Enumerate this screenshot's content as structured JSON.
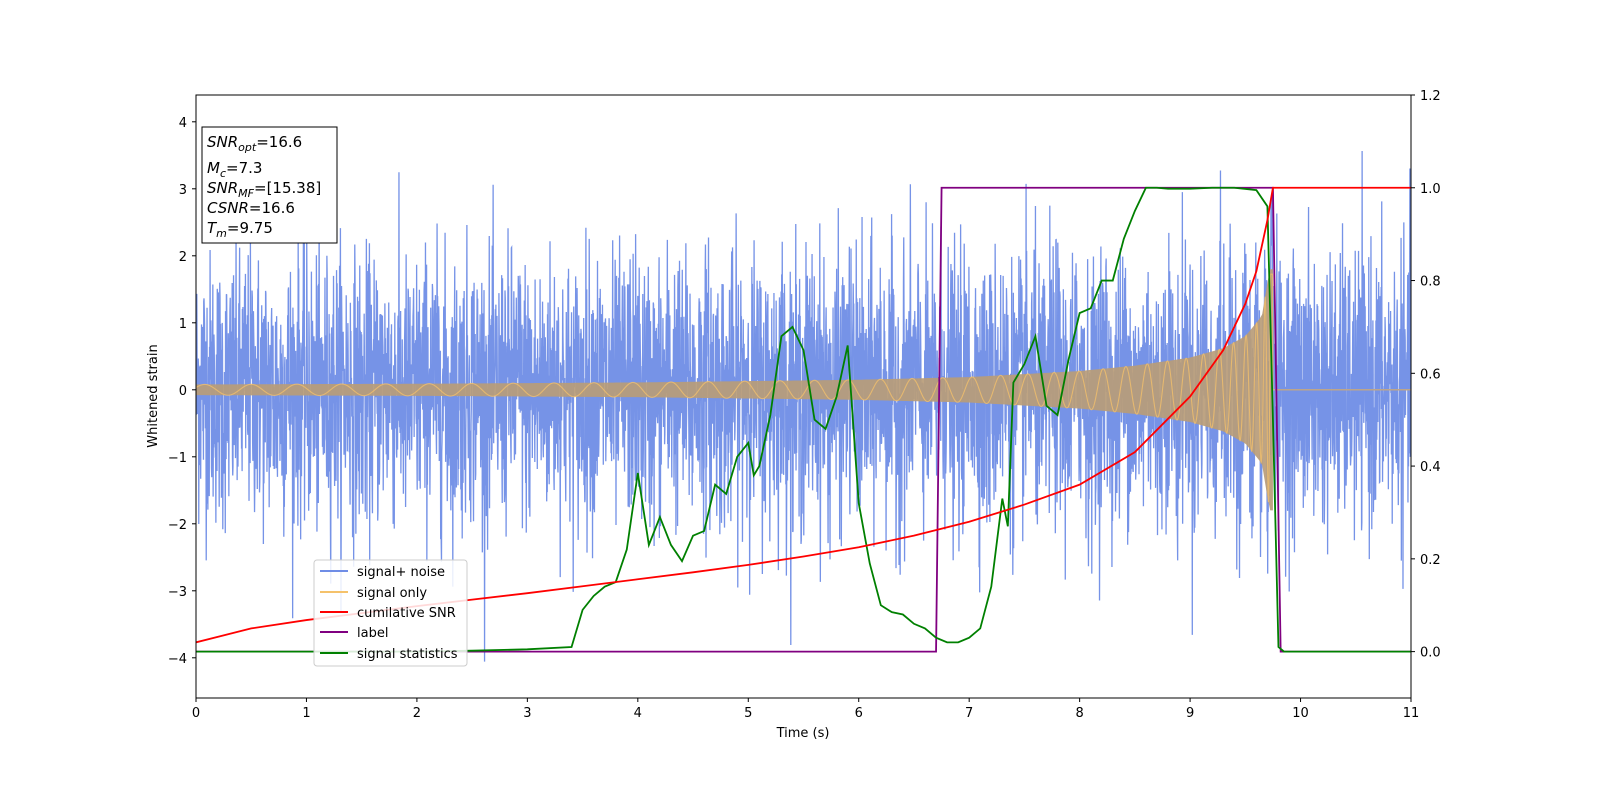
{
  "chart_data": {
    "type": "line",
    "xlabel": "Time (s)",
    "ylabel": "Whitened strain",
    "xlim": [
      0,
      11
    ],
    "ylim_left": [
      -4.6,
      4.4
    ],
    "ylim_right": [
      -0.1,
      1.2
    ],
    "x_ticks": [
      0,
      1,
      2,
      3,
      4,
      5,
      6,
      7,
      8,
      9,
      10,
      11
    ],
    "y_ticks_left": [
      -4,
      -3,
      -2,
      -1,
      0,
      1,
      2,
      3,
      4
    ],
    "y_ticks_right": [
      0.0,
      0.2,
      0.4,
      0.6,
      0.8,
      1.0,
      1.2
    ],
    "grid": false,
    "legend_position": "lower-left",
    "info_box": {
      "snr_opt": {
        "name": "SNR",
        "sub": "opt",
        "value": "=16.6"
      },
      "mc": {
        "name": "M",
        "sub": "c",
        "value": "=7.3"
      },
      "snr_mf": {
        "name": "SNR",
        "sub": "MF",
        "value": "=[15.38]"
      },
      "csnr": {
        "name": "CSNR",
        "value": "=16.6"
      },
      "tm": {
        "name": "T",
        "sub": "m",
        "value": "=9.75"
      }
    },
    "series": [
      {
        "name": "signal+ noise",
        "color": "#6f8de6",
        "axis": "left",
        "description_values": {
          "noise_std": 1.0,
          "t_start": 0,
          "t_end": 11,
          "merger_time": 9.75
        }
      },
      {
        "name": "signal only",
        "color": "#f5c26b",
        "axis": "left",
        "envelope_points": [
          [
            0,
            0.08
          ],
          [
            2,
            0.09
          ],
          [
            4,
            0.11
          ],
          [
            6,
            0.15
          ],
          [
            7,
            0.19
          ],
          [
            8,
            0.28
          ],
          [
            8.5,
            0.36
          ],
          [
            9,
            0.48
          ],
          [
            9.3,
            0.62
          ],
          [
            9.5,
            0.8
          ],
          [
            9.65,
            1.1
          ],
          [
            9.72,
            1.8
          ]
        ],
        "after_merger_value": 0
      },
      {
        "name": "cumilative SNR",
        "color": "#ff0000",
        "axis": "right",
        "points": [
          [
            0,
            0.02
          ],
          [
            0.5,
            0.05
          ],
          [
            1,
            0.068
          ],
          [
            1.5,
            0.083
          ],
          [
            2,
            0.098
          ],
          [
            2.5,
            0.112
          ],
          [
            3,
            0.126
          ],
          [
            3.5,
            0.141
          ],
          [
            4,
            0.156
          ],
          [
            4.5,
            0.171
          ],
          [
            5,
            0.187
          ],
          [
            5.5,
            0.205
          ],
          [
            6,
            0.225
          ],
          [
            6.5,
            0.25
          ],
          [
            7,
            0.28
          ],
          [
            7.5,
            0.317
          ],
          [
            8,
            0.36
          ],
          [
            8.5,
            0.43
          ],
          [
            9,
            0.55
          ],
          [
            9.3,
            0.65
          ],
          [
            9.5,
            0.75
          ],
          [
            9.6,
            0.82
          ],
          [
            9.7,
            0.93
          ],
          [
            9.75,
            1.0
          ],
          [
            11,
            1.0
          ]
        ]
      },
      {
        "name": "label",
        "color": "#800080",
        "axis": "right",
        "points": [
          [
            0,
            0
          ],
          [
            6.7,
            0
          ],
          [
            6.75,
            1
          ],
          [
            9.75,
            1
          ],
          [
            9.82,
            0
          ],
          [
            11,
            0
          ]
        ]
      },
      {
        "name": "signal statistics",
        "color": "#008000",
        "axis": "right",
        "points": [
          [
            0,
            0
          ],
          [
            1,
            0
          ],
          [
            2,
            0
          ],
          [
            2.5,
            0.002
          ],
          [
            3,
            0.005
          ],
          [
            3.4,
            0.01
          ],
          [
            3.5,
            0.09
          ],
          [
            3.6,
            0.12
          ],
          [
            3.7,
            0.14
          ],
          [
            3.8,
            0.15
          ],
          [
            3.9,
            0.22
          ],
          [
            4.0,
            0.385
          ],
          [
            4.1,
            0.23
          ],
          [
            4.2,
            0.29
          ],
          [
            4.3,
            0.23
          ],
          [
            4.4,
            0.195
          ],
          [
            4.5,
            0.25
          ],
          [
            4.6,
            0.26
          ],
          [
            4.7,
            0.36
          ],
          [
            4.8,
            0.34
          ],
          [
            4.9,
            0.42
          ],
          [
            5.0,
            0.45
          ],
          [
            5.05,
            0.38
          ],
          [
            5.1,
            0.4
          ],
          [
            5.2,
            0.51
          ],
          [
            5.3,
            0.68
          ],
          [
            5.4,
            0.7
          ],
          [
            5.5,
            0.65
          ],
          [
            5.6,
            0.5
          ],
          [
            5.7,
            0.48
          ],
          [
            5.8,
            0.55
          ],
          [
            5.9,
            0.66
          ],
          [
            6.0,
            0.32
          ],
          [
            6.1,
            0.19
          ],
          [
            6.2,
            0.1
          ],
          [
            6.3,
            0.085
          ],
          [
            6.4,
            0.08
          ],
          [
            6.5,
            0.06
          ],
          [
            6.6,
            0.05
          ],
          [
            6.7,
            0.03
          ],
          [
            6.8,
            0.02
          ],
          [
            6.9,
            0.02
          ],
          [
            7.0,
            0.03
          ],
          [
            7.1,
            0.05
          ],
          [
            7.2,
            0.14
          ],
          [
            7.3,
            0.33
          ],
          [
            7.35,
            0.27
          ],
          [
            7.4,
            0.58
          ],
          [
            7.5,
            0.62
          ],
          [
            7.6,
            0.68
          ],
          [
            7.7,
            0.53
          ],
          [
            7.8,
            0.51
          ],
          [
            7.9,
            0.63
          ],
          [
            8.0,
            0.73
          ],
          [
            8.1,
            0.74
          ],
          [
            8.2,
            0.8
          ],
          [
            8.3,
            0.8
          ],
          [
            8.4,
            0.89
          ],
          [
            8.5,
            0.95
          ],
          [
            8.6,
            1.0
          ],
          [
            8.7,
            1.0
          ],
          [
            8.8,
            0.998
          ],
          [
            9.0,
            0.998
          ],
          [
            9.2,
            1.0
          ],
          [
            9.4,
            1.0
          ],
          [
            9.6,
            0.995
          ],
          [
            9.7,
            0.96
          ],
          [
            9.75,
            0.5
          ],
          [
            9.8,
            0.01
          ],
          [
            9.85,
            0.0
          ],
          [
            11,
            0
          ]
        ]
      }
    ]
  }
}
